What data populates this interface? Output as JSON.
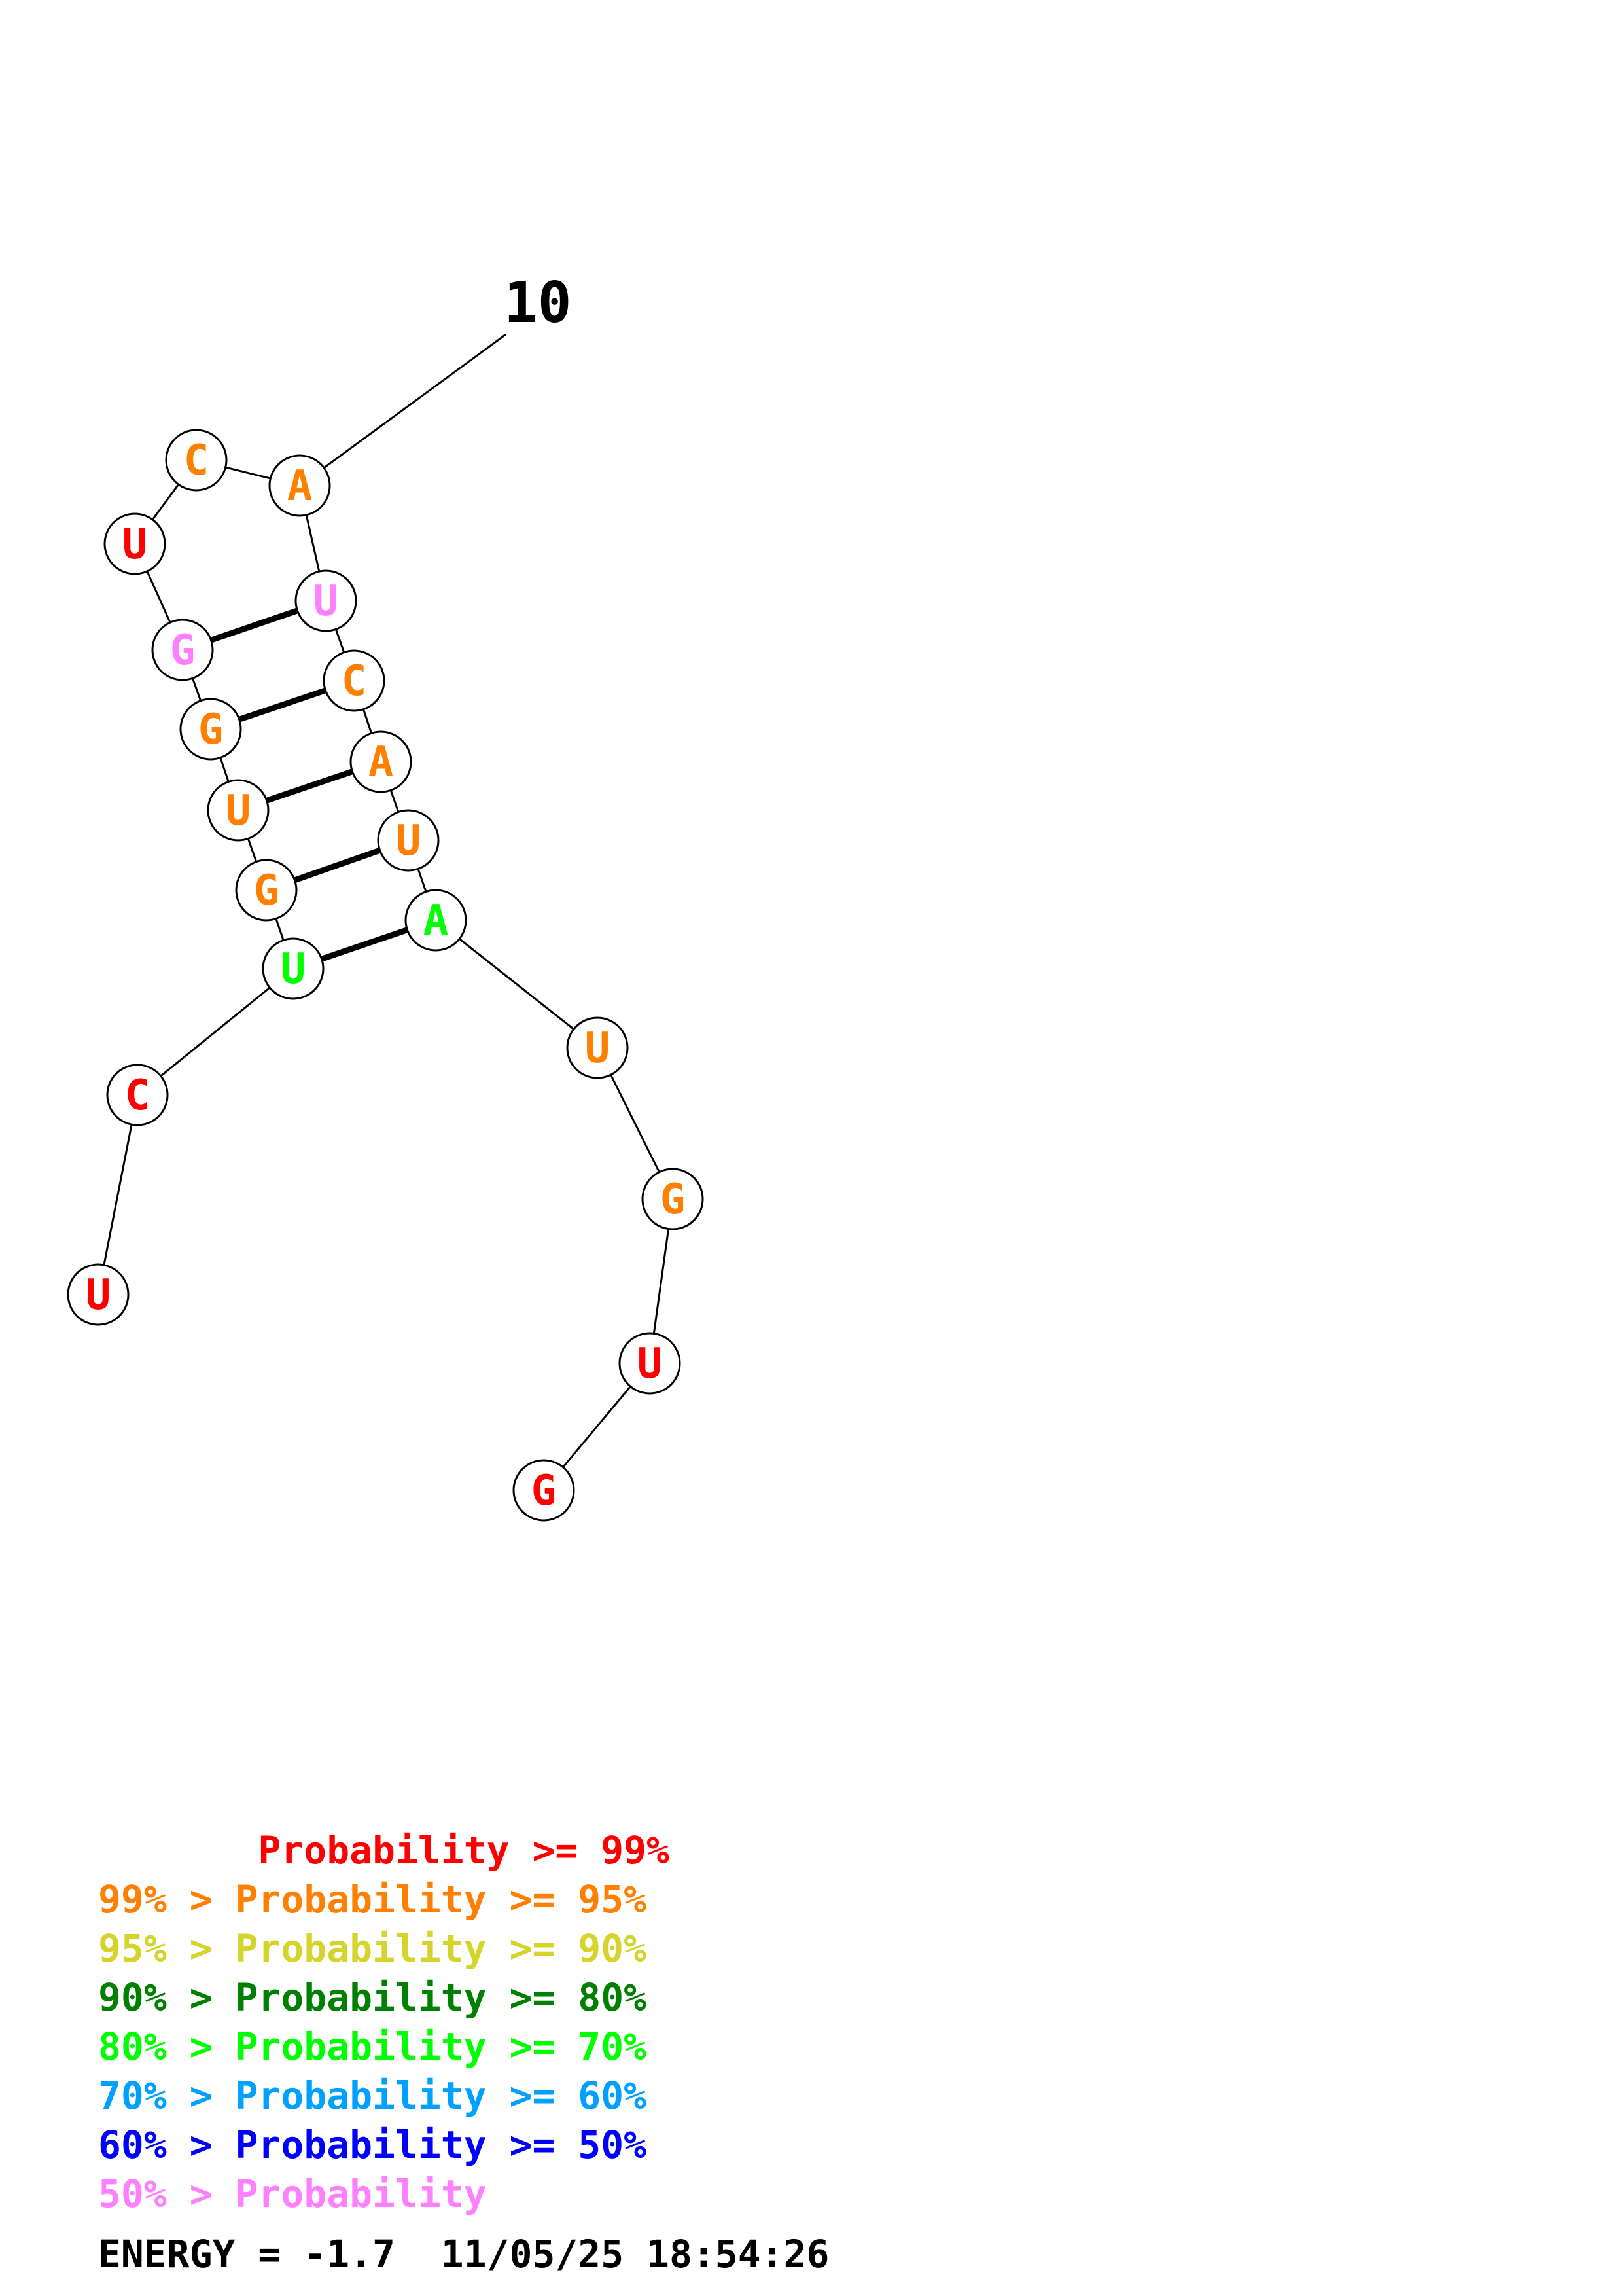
{
  "structure": {
    "index_label": "10",
    "colors": {
      "p99": "#ff0000",
      "p95": "#ff8000",
      "p90": "#d4d42a",
      "p80": "#008000",
      "p70": "#00ff00",
      "p60": "#00a0ff",
      "p50": "#0000ff",
      "plow": "#ff80ff"
    },
    "nucleotides": [
      {
        "base": "U",
        "color": "#ff0000"
      },
      {
        "base": "C",
        "color": "#ff0000"
      },
      {
        "base": "U",
        "color": "#00ff00"
      },
      {
        "base": "G",
        "color": "#ff8000"
      },
      {
        "base": "U",
        "color": "#ff8000"
      },
      {
        "base": "G",
        "color": "#ff8000"
      },
      {
        "base": "G",
        "color": "#ff80ff"
      },
      {
        "base": "U",
        "color": "#ff0000"
      },
      {
        "base": "C",
        "color": "#ff8000"
      },
      {
        "base": "A",
        "color": "#ff8000"
      },
      {
        "base": "U",
        "color": "#ff80ff"
      },
      {
        "base": "C",
        "color": "#ff8000"
      },
      {
        "base": "A",
        "color": "#ff8000"
      },
      {
        "base": "U",
        "color": "#ff8000"
      },
      {
        "base": "A",
        "color": "#00ff00"
      },
      {
        "base": "U",
        "color": "#ff8000"
      },
      {
        "base": "G",
        "color": "#ff8000"
      },
      {
        "base": "U",
        "color": "#ff0000"
      },
      {
        "base": "G",
        "color": "#ff0000"
      }
    ],
    "pairs": [
      [
        3,
        15
      ],
      [
        4,
        14
      ],
      [
        5,
        13
      ],
      [
        6,
        12
      ],
      [
        7,
        11
      ]
    ]
  },
  "legend": [
    {
      "text": "       Probability >= 99%",
      "color": "#ff0000"
    },
    {
      "text": "99% > Probability >= 95%",
      "color": "#ff8000"
    },
    {
      "text": "95% > Probability >= 90%",
      "color": "#d4d42a"
    },
    {
      "text": "90% > Probability >= 80%",
      "color": "#008000"
    },
    {
      "text": "80% > Probability >= 70%",
      "color": "#00ff00"
    },
    {
      "text": "70% > Probability >= 60%",
      "color": "#00a0ff"
    },
    {
      "text": "60% > Probability >= 50%",
      "color": "#0000ff"
    },
    {
      "text": "50% > Probability",
      "color": "#ff80ff"
    }
  ],
  "footer": {
    "energy_text": "ENERGY = -1.7  11/05/25 18:54:26"
  }
}
